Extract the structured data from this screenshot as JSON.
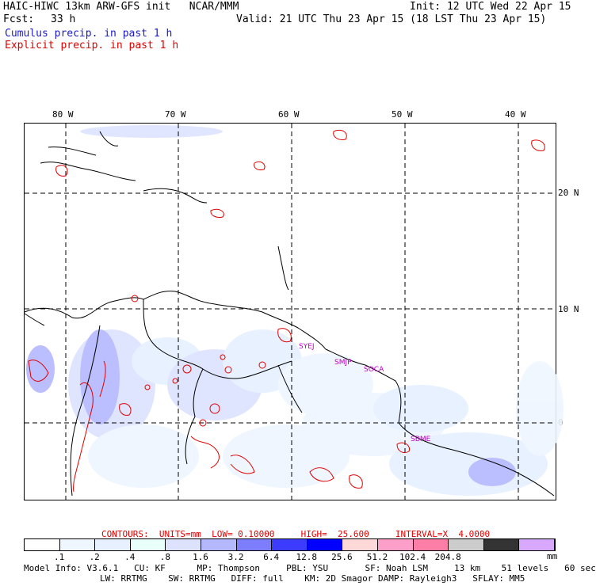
{
  "header": {
    "model": "HAIC-HIWC 13km ARW-GFS init   NCAR/MMM",
    "init": "Init: 12 UTC Wed 22 Apr 15",
    "fcst_label": "Fcst:",
    "fcst_value": "33 h",
    "valid": "Valid: 21 UTC Thu 23 Apr 15 (18 LST Thu 23 Apr 15)",
    "legend_cumulus": "Cumulus precip. in past 1 h",
    "legend_explicit": "Explicit precip. in past 1 h"
  },
  "colors": {
    "cumulus": "#1a1ac8",
    "explicit": "#e00000",
    "station": "#c000c0",
    "coast": "#000000",
    "grid": "#000000"
  },
  "map": {
    "lon_labels": [
      "80 W",
      "70 W",
      "60 W",
      "50 W",
      "40 W"
    ],
    "lat_labels": [
      "20 N",
      "10 N",
      "0"
    ],
    "stations": [
      "SYEJ",
      "SMJP",
      "SOCA",
      "SBME"
    ]
  },
  "contours": {
    "text": "CONTOURS:  UNITS=mm  LOW= 0.10000     HIGH=  25.600     INTERVAL=X  4.0000"
  },
  "colorbar": {
    "colors": [
      "#ffffff",
      "#eef6ff",
      "#e6f0ff",
      "#e8fffa",
      "#dde3ff",
      "#b4b8ff",
      "#7d7dff",
      "#3c3cff",
      "#0000ff",
      "#ffd8d8",
      "#ff9ec8",
      "#ff7ea8",
      "#cccccc",
      "#333333",
      "#d8a8ff"
    ],
    "ticks": [
      ".1",
      ".2",
      ".4",
      ".8",
      "1.6",
      "3.2",
      "6.4",
      "12.8",
      "25.6",
      "51.2",
      "102.4",
      "204.8"
    ],
    "unit": "mm"
  },
  "model_info": {
    "line1": "Model Info: V3.6.1   CU: KF      MP: Thompson     PBL: YSU       SF: Noah LSM     13 km    51 levels   60 sec",
    "line2": "LW: RRTMG    SW: RRTMG   DIFF: full    KM: 2D Smagor DAMP: Rayleigh3   SFLAY: MM5"
  }
}
